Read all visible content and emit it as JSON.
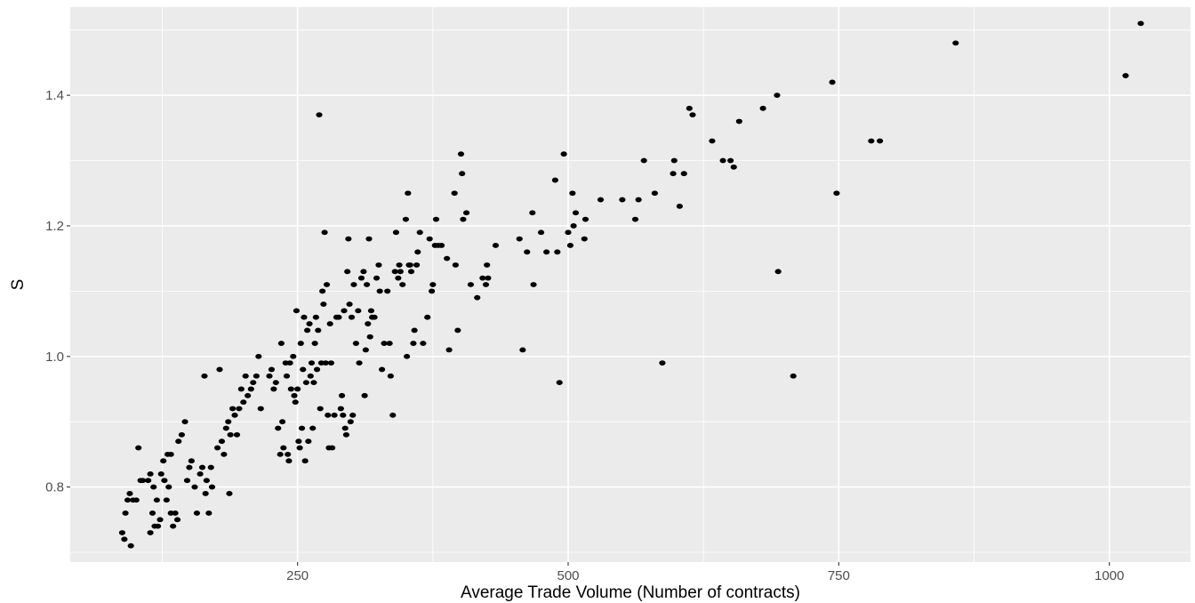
{
  "chart_data": {
    "type": "scatter",
    "title": "",
    "xlabel": "Average Trade Volume (Number of contracts)",
    "ylabel": "S",
    "xlim": [
      40,
      1075
    ],
    "ylim": [
      0.685,
      1.535
    ],
    "x_ticks": [
      250,
      500,
      750,
      1000
    ],
    "y_ticks": [
      0.8,
      1.0,
      1.2,
      1.4
    ],
    "x_tick_labels": [
      "250",
      "500",
      "750",
      "1000"
    ],
    "y_tick_labels": [
      "0.8",
      "1.0",
      "1.2",
      "1.4"
    ],
    "grid": true,
    "legend": "none",
    "colors": {
      "panel": "#ebebeb",
      "grid": "#ffffff",
      "point": "#000000"
    },
    "points": [
      [
        88,
        0.73
      ],
      [
        90,
        0.72
      ],
      [
        91,
        0.76
      ],
      [
        93,
        0.78
      ],
      [
        95,
        0.79
      ],
      [
        96,
        0.71
      ],
      [
        98,
        0.78
      ],
      [
        101,
        0.78
      ],
      [
        103,
        0.86
      ],
      [
        105,
        0.81
      ],
      [
        107,
        0.81
      ],
      [
        112,
        0.81
      ],
      [
        114,
        0.82
      ],
      [
        116,
        0.76
      ],
      [
        117,
        0.8
      ],
      [
        118,
        0.74
      ],
      [
        120,
        0.78
      ],
      [
        121,
        0.74
      ],
      [
        123,
        0.75
      ],
      [
        124,
        0.82
      ],
      [
        127,
        0.81
      ],
      [
        129,
        0.78
      ],
      [
        131,
        0.8
      ],
      [
        133,
        0.76
      ],
      [
        135,
        0.74
      ],
      [
        137,
        0.76
      ],
      [
        139,
        0.75
      ],
      [
        114,
        0.73
      ],
      [
        126,
        0.84
      ],
      [
        130,
        0.85
      ],
      [
        133,
        0.85
      ],
      [
        140,
        0.87
      ],
      [
        143,
        0.88
      ],
      [
        146,
        0.9
      ],
      [
        148,
        0.81
      ],
      [
        150,
        0.83
      ],
      [
        152,
        0.84
      ],
      [
        155,
        0.8
      ],
      [
        157,
        0.76
      ],
      [
        160,
        0.82
      ],
      [
        162,
        0.83
      ],
      [
        164,
        0.97
      ],
      [
        165,
        0.79
      ],
      [
        166,
        0.81
      ],
      [
        168,
        0.76
      ],
      [
        170,
        0.83
      ],
      [
        171,
        0.8
      ],
      [
        176,
        0.86
      ],
      [
        178,
        0.98
      ],
      [
        180,
        0.87
      ],
      [
        182,
        0.85
      ],
      [
        184,
        0.89
      ],
      [
        186,
        0.9
      ],
      [
        187,
        0.79
      ],
      [
        188,
        0.88
      ],
      [
        190,
        0.92
      ],
      [
        192,
        0.91
      ],
      [
        194,
        0.88
      ],
      [
        196,
        0.92
      ],
      [
        198,
        0.95
      ],
      [
        200,
        0.93
      ],
      [
        202,
        0.97
      ],
      [
        204,
        0.94
      ],
      [
        207,
        0.95
      ],
      [
        209,
        0.96
      ],
      [
        212,
        0.97
      ],
      [
        214,
        1.0
      ],
      [
        216,
        0.92
      ],
      [
        224,
        0.97
      ],
      [
        226,
        0.98
      ],
      [
        228,
        0.95
      ],
      [
        230,
        0.96
      ],
      [
        232,
        0.89
      ],
      [
        234,
        0.85
      ],
      [
        235,
        1.02
      ],
      [
        236,
        0.9
      ],
      [
        237,
        0.86
      ],
      [
        239,
        0.99
      ],
      [
        240,
        0.97
      ],
      [
        241,
        0.85
      ],
      [
        242,
        0.84
      ],
      [
        243,
        0.99
      ],
      [
        244,
        0.95
      ],
      [
        246,
        1.0
      ],
      [
        247,
        0.94
      ],
      [
        248,
        0.93
      ],
      [
        249,
        1.07
      ],
      [
        250,
        0.95
      ],
      [
        251,
        0.87
      ],
      [
        252,
        0.86
      ],
      [
        253,
        1.02
      ],
      [
        254,
        0.89
      ],
      [
        255,
        0.98
      ],
      [
        256,
        1.06
      ],
      [
        257,
        0.84
      ],
      [
        258,
        0.96
      ],
      [
        259,
        1.04
      ],
      [
        260,
        0.87
      ],
      [
        261,
        1.05
      ],
      [
        262,
        0.97
      ],
      [
        263,
        0.99
      ],
      [
        264,
        0.89
      ],
      [
        265,
        0.96
      ],
      [
        266,
        1.02
      ],
      [
        267,
        1.06
      ],
      [
        268,
        0.98
      ],
      [
        269,
        1.04
      ],
      [
        270,
        1.37
      ],
      [
        271,
        0.92
      ],
      [
        272,
        0.99
      ],
      [
        273,
        1.1
      ],
      [
        274,
        1.08
      ],
      [
        275,
        1.19
      ],
      [
        276,
        0.99
      ],
      [
        277,
        1.11
      ],
      [
        278,
        0.91
      ],
      [
        279,
        0.86
      ],
      [
        280,
        1.05
      ],
      [
        281,
        0.99
      ],
      [
        282,
        0.86
      ],
      [
        284,
        0.91
      ],
      [
        286,
        1.06
      ],
      [
        288,
        1.06
      ],
      [
        290,
        0.92
      ],
      [
        291,
        0.94
      ],
      [
        292,
        0.91
      ],
      [
        293,
        1.07
      ],
      [
        294,
        0.89
      ],
      [
        295,
        0.88
      ],
      [
        296,
        1.13
      ],
      [
        297,
        1.18
      ],
      [
        298,
        1.08
      ],
      [
        299,
        0.9
      ],
      [
        300,
        1.06
      ],
      [
        301,
        0.91
      ],
      [
        302,
        1.11
      ],
      [
        304,
        1.02
      ],
      [
        306,
        1.07
      ],
      [
        307,
        0.99
      ],
      [
        309,
        1.12
      ],
      [
        311,
        1.13
      ],
      [
        312,
        0.94
      ],
      [
        313,
        1.01
      ],
      [
        314,
        1.11
      ],
      [
        315,
        1.05
      ],
      [
        316,
        1.18
      ],
      [
        317,
        1.03
      ],
      [
        318,
        1.07
      ],
      [
        319,
        1.06
      ],
      [
        321,
        1.06
      ],
      [
        323,
        1.12
      ],
      [
        325,
        1.14
      ],
      [
        326,
        1.1
      ],
      [
        328,
        0.98
      ],
      [
        330,
        1.02
      ],
      [
        333,
        1.1
      ],
      [
        335,
        1.02
      ],
      [
        336,
        0.97
      ],
      [
        338,
        0.91
      ],
      [
        340,
        1.13
      ],
      [
        341,
        1.19
      ],
      [
        343,
        1.12
      ],
      [
        344,
        1.14
      ],
      [
        345,
        1.13
      ],
      [
        347,
        1.11
      ],
      [
        350,
        1.21
      ],
      [
        351,
        1.0
      ],
      [
        352,
        1.25
      ],
      [
        353,
        1.14
      ],
      [
        354,
        1.14
      ],
      [
        355,
        1.13
      ],
      [
        357,
        1.02
      ],
      [
        358,
        1.04
      ],
      [
        360,
        1.14
      ],
      [
        361,
        1.16
      ],
      [
        363,
        1.19
      ],
      [
        366,
        1.02
      ],
      [
        370,
        1.06
      ],
      [
        372,
        1.18
      ],
      [
        374,
        1.1
      ],
      [
        375,
        1.11
      ],
      [
        377,
        1.17
      ],
      [
        378,
        1.21
      ],
      [
        380,
        1.17
      ],
      [
        383,
        1.17
      ],
      [
        388,
        1.15
      ],
      [
        390,
        1.01
      ],
      [
        395,
        1.25
      ],
      [
        396,
        1.14
      ],
      [
        398,
        1.04
      ],
      [
        401,
        1.31
      ],
      [
        402,
        1.28
      ],
      [
        403,
        1.21
      ],
      [
        406,
        1.22
      ],
      [
        410,
        1.11
      ],
      [
        416,
        1.09
      ],
      [
        421,
        1.12
      ],
      [
        424,
        1.11
      ],
      [
        425,
        1.14
      ],
      [
        426,
        1.12
      ],
      [
        433,
        1.17
      ],
      [
        455,
        1.18
      ],
      [
        458,
        1.01
      ],
      [
        462,
        1.16
      ],
      [
        467,
        1.22
      ],
      [
        468,
        1.11
      ],
      [
        475,
        1.19
      ],
      [
        480,
        1.16
      ],
      [
        488,
        1.27
      ],
      [
        490,
        1.16
      ],
      [
        492,
        0.96
      ],
      [
        496,
        1.31
      ],
      [
        500,
        1.19
      ],
      [
        502,
        1.17
      ],
      [
        504,
        1.25
      ],
      [
        505,
        1.2
      ],
      [
        507,
        1.22
      ],
      [
        515,
        1.18
      ],
      [
        516,
        1.21
      ],
      [
        530,
        1.24
      ],
      [
        550,
        1.24
      ],
      [
        562,
        1.21
      ],
      [
        565,
        1.24
      ],
      [
        570,
        1.3
      ],
      [
        580,
        1.25
      ],
      [
        587,
        0.99
      ],
      [
        597,
        1.28
      ],
      [
        598,
        1.3
      ],
      [
        603,
        1.23
      ],
      [
        607,
        1.28
      ],
      [
        612,
        1.38
      ],
      [
        615,
        1.37
      ],
      [
        633,
        1.33
      ],
      [
        643,
        1.3
      ],
      [
        650,
        1.3
      ],
      [
        653,
        1.29
      ],
      [
        658,
        1.36
      ],
      [
        680,
        1.38
      ],
      [
        693,
        1.4
      ],
      [
        694,
        1.13
      ],
      [
        708,
        0.97
      ],
      [
        744,
        1.42
      ],
      [
        748,
        1.25
      ],
      [
        780,
        1.33
      ],
      [
        788,
        1.33
      ],
      [
        858,
        1.48
      ],
      [
        1015,
        1.43
      ],
      [
        1029,
        1.51
      ]
    ]
  }
}
